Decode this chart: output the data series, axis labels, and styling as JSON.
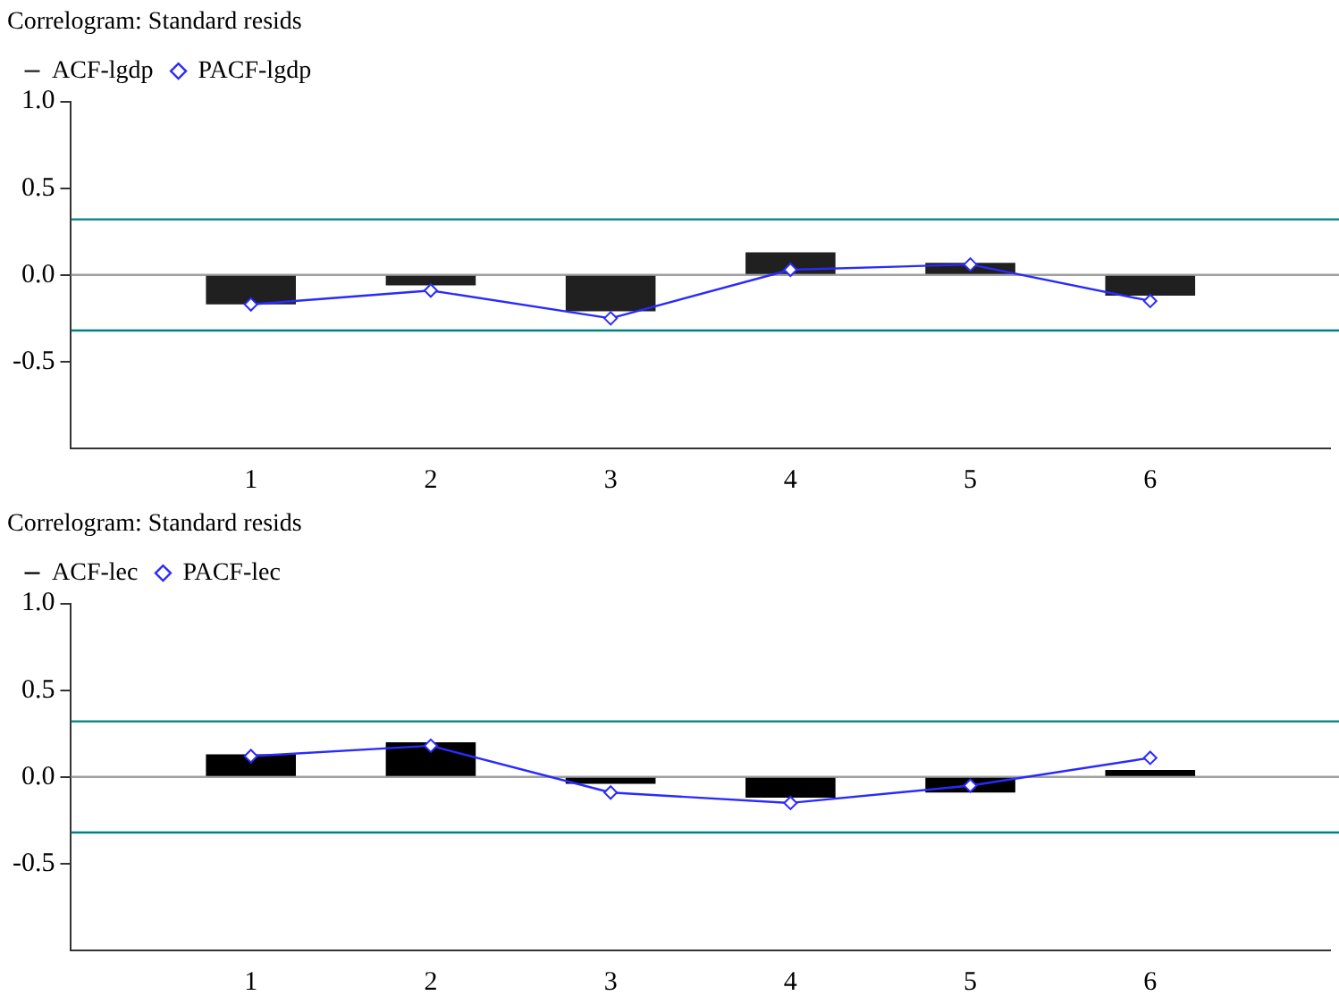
{
  "chart_data": [
    {
      "type": "bar",
      "title": "Correlogram: Standard resids",
      "x": [
        1,
        2,
        3,
        4,
        5,
        6
      ],
      "xlim": [
        0,
        7
      ],
      "xticks": [
        1,
        2,
        3,
        4,
        5,
        6
      ],
      "ylim": [
        -1,
        1
      ],
      "yticks": [
        {
          "value": 1,
          "label": "1.0"
        },
        {
          "value": 0.5,
          "label": "0.5"
        },
        {
          "value": 0,
          "label": "0.0"
        },
        {
          "value": -0.5,
          "label": "-0.5"
        }
      ],
      "grid": false,
      "legend": "top left",
      "marker": "diamond",
      "line_style": "solid",
      "series": [
        {
          "name": "ACF-lgdp",
          "color": "#202020",
          "values": [
            -0.17,
            -0.06,
            -0.21,
            0.13,
            0.07,
            -0.12
          ]
        },
        {
          "name": "PACF-lgdp",
          "type": "line",
          "color": "#2a2aff",
          "values": [
            -0.17,
            -0.09,
            -0.25,
            0.03,
            0.06,
            -0.15
          ]
        }
      ],
      "ref_lines": [
        {
          "axis": "y",
          "value": 0.32,
          "color": "#008080"
        },
        {
          "axis": "y",
          "value": -0.32,
          "color": "#008080"
        },
        {
          "axis": "y",
          "value": 0,
          "color": "#a0a0a0"
        }
      ]
    },
    {
      "type": "bar",
      "title": "Correlogram: Standard resids",
      "x": [
        1,
        2,
        3,
        4,
        5,
        6
      ],
      "xlim": [
        0,
        7
      ],
      "xticks": [
        1,
        2,
        3,
        4,
        5,
        6
      ],
      "ylim": [
        -1,
        1
      ],
      "yticks": [
        {
          "value": 1,
          "label": "1.0"
        },
        {
          "value": 0.5,
          "label": "0.5"
        },
        {
          "value": 0,
          "label": "0.0"
        },
        {
          "value": -0.5,
          "label": "-0.5"
        }
      ],
      "grid": false,
      "legend": "top left",
      "marker": "diamond",
      "line_style": "solid",
      "series": [
        {
          "name": "ACF-lec",
          "color": "#000000",
          "values": [
            0.13,
            0.2,
            -0.04,
            -0.12,
            -0.09,
            0.04
          ]
        },
        {
          "name": "PACF-lec",
          "type": "line",
          "color": "#2a2aff",
          "values": [
            0.12,
            0.18,
            -0.09,
            -0.15,
            -0.05,
            0.11
          ]
        }
      ],
      "ref_lines": [
        {
          "axis": "y",
          "value": 0.32,
          "color": "#008080"
        },
        {
          "axis": "y",
          "value": -0.32,
          "color": "#008080"
        },
        {
          "axis": "y",
          "value": 0,
          "color": "#a0a0a0"
        }
      ]
    }
  ]
}
